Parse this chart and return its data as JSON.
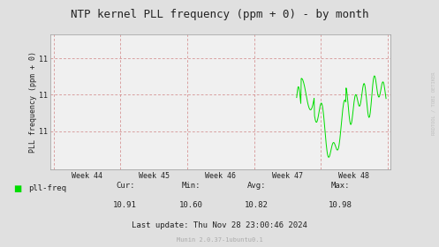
{
  "title": "NTP kernel PLL frequency (ppm + 0) - by month",
  "ylabel": "PLL frequency (ppm + 0)",
  "background_color": "#e0e0e0",
  "plot_bg_color": "#f0f0f0",
  "grid_color": "#d08080",
  "line_color": "#00dd00",
  "watermark": "RRDTOOL / TOBI OETIKER",
  "footer_munin": "Munin 2.0.37-1ubuntu0.1",
  "legend_label": "pll-freq",
  "cur": "10.91",
  "min": "10.60",
  "avg": "10.82",
  "max": "10.98",
  "last_update": "Last update: Thu Nov 28 23:00:46 2024",
  "ytick_labels": [
    "11",
    "11",
    "11"
  ],
  "ylim": [
    10.5,
    11.12
  ],
  "week_labels": [
    "Week 44",
    "Week 45",
    "Week 46",
    "Week 47",
    "Week 48"
  ],
  "title_fontsize": 9,
  "axis_fontsize": 6,
  "legend_fontsize": 6.5,
  "stats_fontsize": 6.5,
  "footer_fontsize": 5,
  "watermark_fontsize": 4
}
